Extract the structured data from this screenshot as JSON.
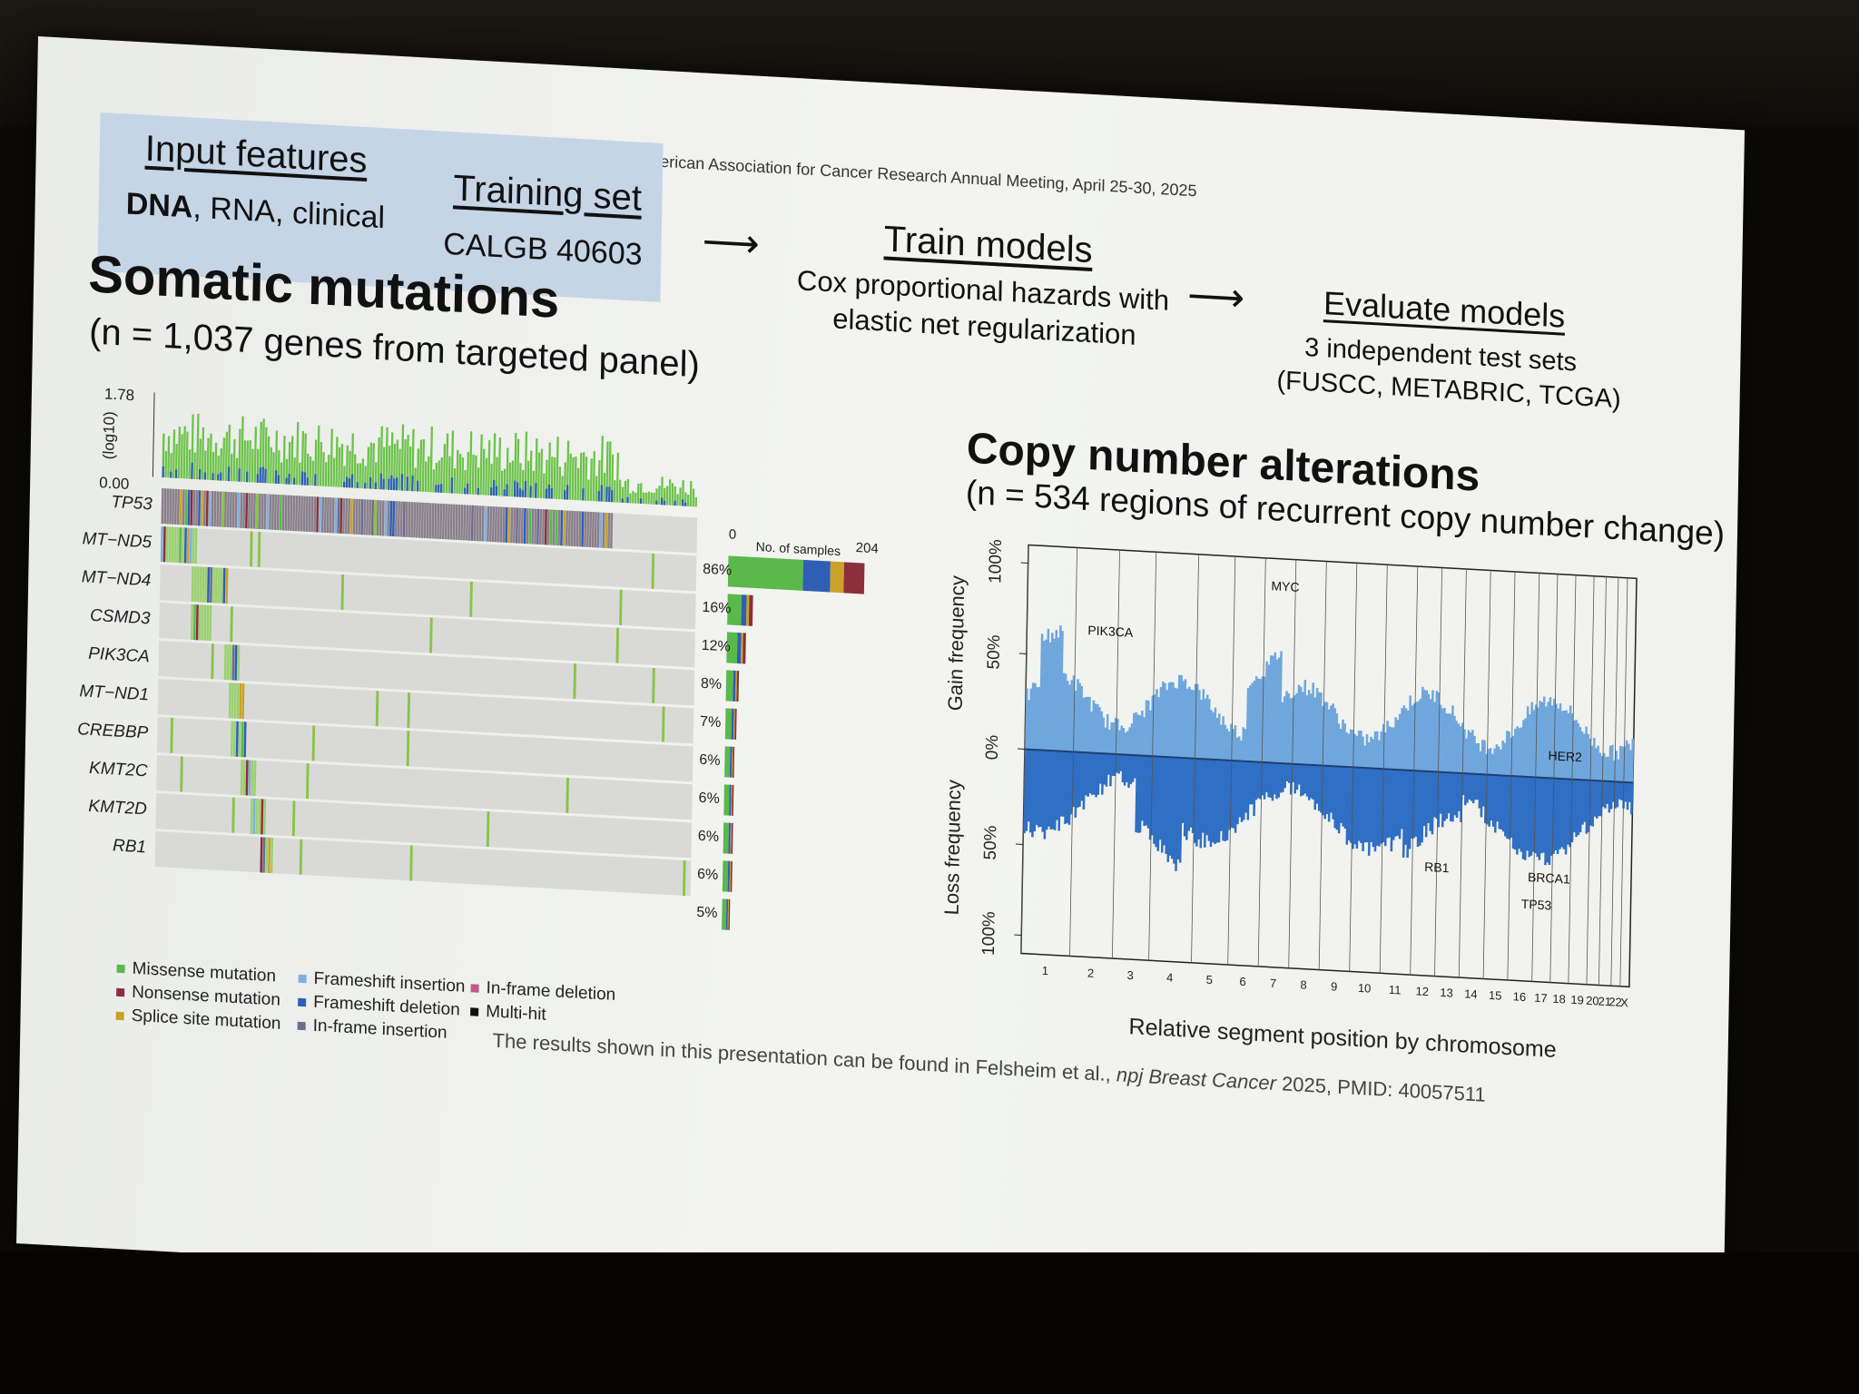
{
  "header": {
    "meeting": "American Association for Cancer Research Annual Meeting, April 25-30, 2025",
    "input_title": "Input features",
    "input_dna": "DNA",
    "input_rest": ", RNA, clinical",
    "training_title": "Training set",
    "training_value": "CALGB 40603",
    "train_title": "Train models",
    "train_line1": "Cox proportional hazards with",
    "train_line2": "elastic net regularization",
    "eval_title": "Evaluate models",
    "eval_line1": "3 independent test sets",
    "eval_line2": "(FUSCC, METABRIC, TCGA)",
    "arrow": "⟶"
  },
  "mutations": {
    "title": "Somatic mutations",
    "subtitle": "(n = 1,037 genes from targeted panel)",
    "y_top": "1.78",
    "y_bottom": "0.00",
    "y_label": "(log10)",
    "genes": [
      "TP53",
      "MT−ND5",
      "MT−ND4",
      "CSMD3",
      "PIK3CA",
      "MT−ND1",
      "CREBBP",
      "KMT2C",
      "KMT2D",
      "RB1"
    ],
    "percents": [
      "86%",
      "16%",
      "12%",
      "8%",
      "7%",
      "6%",
      "6%",
      "6%",
      "6%",
      "5%"
    ],
    "samples_label": "No. of samples",
    "samples_min": "0",
    "samples_max": "204",
    "legend": [
      {
        "label": "Missense mutation",
        "color": "#5ab94a"
      },
      {
        "label": "Nonsense mutation",
        "color": "#8b2f3a"
      },
      {
        "label": "Splice site mutation",
        "color": "#c9a227"
      },
      {
        "label": "Frameshift insertion",
        "color": "#7fb0dd"
      },
      {
        "label": "Frameshift deletion",
        "color": "#2f5fb5"
      },
      {
        "label": "In-frame insertion",
        "color": "#6d6d92"
      },
      {
        "label": "In-frame deletion",
        "color": "#c05a8a"
      },
      {
        "label": "Multi-hit",
        "color": "#111111"
      }
    ]
  },
  "cna": {
    "title": "Copy number alterations",
    "subtitle": "(n = 534 regions of recurrent copy number change)",
    "gain_label": "Gain frequency",
    "loss_label": "Loss frequency",
    "ticks": [
      "100%",
      "50%",
      "0%",
      "50%",
      "100%"
    ],
    "chromosomes": [
      "1",
      "2",
      "3",
      "4",
      "5",
      "6",
      "7",
      "8",
      "9",
      "10",
      "11",
      "12",
      "13",
      "14",
      "15",
      "16",
      "17",
      "18",
      "19",
      "20",
      "21",
      "22",
      "X"
    ],
    "xlabel": "Relative segment position by chromosome",
    "annotations": [
      "MYC",
      "PIK3CA",
      "HER2",
      "RB1",
      "BRCA1",
      "TP53"
    ],
    "gain_color": "#6fa7dd",
    "loss_color": "#2f6fc4"
  },
  "footer": {
    "text_before": "The results shown in this presentation can be found in Felsheim et al., ",
    "journal": "npj Breast Cancer",
    "text_after": " 2025, PMID: 40057511"
  }
}
